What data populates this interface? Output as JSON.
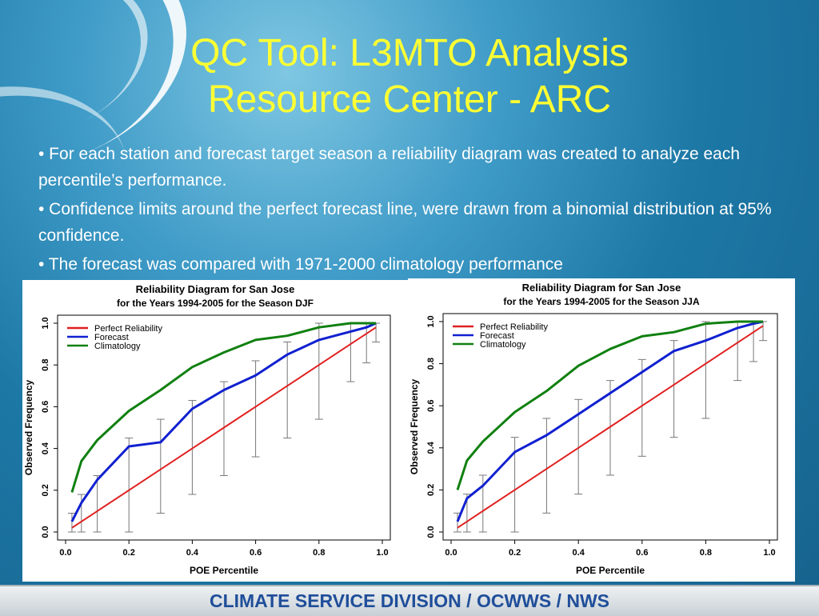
{
  "title_line1": "QC Tool: L3MTO Analysis",
  "title_line2": "Resource Center - ARC",
  "bullets": [
    "• For each station and forecast target season a reliability diagram was created to analyze each percentile’s performance.",
    "• Confidence limits around the perfect forecast line, were drawn from a binomial distribution at 95% confidence.",
    "• The forecast was compared with 1971-2000 climatology performance"
  ],
  "footer": "CLIMATE SERVICE DIVISION / OCWWS / NWS",
  "colors": {
    "perfect": "#e02020",
    "forecast": "#1020d0",
    "climatology": "#108010",
    "title": "#ffff33",
    "footer_text": "#1f4e9a"
  },
  "chart_data": [
    {
      "type": "line",
      "title": "Reliability Diagram for San Jose",
      "subtitle": "for the Years 1994-2005 for the Season  DJF",
      "xlabel": "POE Percentile",
      "ylabel": "Observed Frequency",
      "xlim": [
        0,
        1
      ],
      "ylim": [
        0,
        1
      ],
      "xticks": [
        "0.0",
        "0.2",
        "0.4",
        "0.6",
        "0.8",
        "1.0"
      ],
      "yticks": [
        "0.0",
        "0.2",
        "0.4",
        "0.6",
        "0.8",
        "1.0"
      ],
      "x": [
        0.02,
        0.05,
        0.1,
        0.2,
        0.3,
        0.4,
        0.5,
        0.6,
        0.7,
        0.8,
        0.9,
        0.95,
        0.98
      ],
      "series": [
        {
          "name": "Perfect Reliability",
          "color": "#e02020",
          "values": [
            0.02,
            0.05,
            0.1,
            0.2,
            0.3,
            0.4,
            0.5,
            0.6,
            0.7,
            0.8,
            0.9,
            0.95,
            0.98
          ]
        },
        {
          "name": "Forecast",
          "color": "#1020d0",
          "values": [
            0.05,
            0.14,
            0.25,
            0.41,
            0.43,
            0.59,
            0.68,
            0.75,
            0.85,
            0.92,
            0.96,
            0.98,
            1.0
          ]
        },
        {
          "name": "Climatology",
          "color": "#108010",
          "values": [
            0.19,
            0.34,
            0.44,
            0.58,
            0.68,
            0.79,
            0.86,
            0.92,
            0.94,
            0.98,
            1.0,
            1.0,
            1.0
          ]
        }
      ],
      "error_bars": {
        "x": [
          0.02,
          0.05,
          0.1,
          0.2,
          0.3,
          0.4,
          0.5,
          0.6,
          0.7,
          0.8,
          0.9,
          0.95,
          0.98
        ],
        "low": [
          0.0,
          0.0,
          0.0,
          0.0,
          0.09,
          0.18,
          0.27,
          0.36,
          0.45,
          0.54,
          0.72,
          0.81,
          0.91
        ],
        "high": [
          0.09,
          0.18,
          0.27,
          0.45,
          0.54,
          0.63,
          0.72,
          0.82,
          0.91,
          1.0,
          1.0,
          1.0,
          1.0
        ]
      },
      "legend_position": "top-left"
    },
    {
      "type": "line",
      "title": "Reliability Diagram for San Jose",
      "subtitle": "for the Years 1994-2005 for the Season  JJA",
      "xlabel": "POE Percentile",
      "ylabel": "Observed Frequency",
      "xlim": [
        0,
        1
      ],
      "ylim": [
        0,
        1
      ],
      "xticks": [
        "0.0",
        "0.2",
        "0.4",
        "0.6",
        "0.8",
        "1.0"
      ],
      "yticks": [
        "0.0",
        "0.2",
        "0.4",
        "0.6",
        "0.8",
        "1.0"
      ],
      "x": [
        0.02,
        0.05,
        0.1,
        0.2,
        0.3,
        0.4,
        0.5,
        0.6,
        0.7,
        0.8,
        0.9,
        0.95,
        0.98
      ],
      "series": [
        {
          "name": "Perfect Reliability",
          "color": "#e02020",
          "values": [
            0.02,
            0.05,
            0.1,
            0.2,
            0.3,
            0.4,
            0.5,
            0.6,
            0.7,
            0.8,
            0.9,
            0.95,
            0.98
          ]
        },
        {
          "name": "Forecast",
          "color": "#1020d0",
          "values": [
            0.05,
            0.16,
            0.22,
            0.38,
            0.46,
            0.56,
            0.66,
            0.76,
            0.86,
            0.91,
            0.97,
            0.99,
            1.0
          ]
        },
        {
          "name": "Climatology",
          "color": "#108010",
          "values": [
            0.2,
            0.34,
            0.43,
            0.57,
            0.67,
            0.79,
            0.87,
            0.93,
            0.95,
            0.99,
            1.0,
            1.0,
            1.0
          ]
        }
      ],
      "error_bars": {
        "x": [
          0.02,
          0.05,
          0.1,
          0.2,
          0.3,
          0.4,
          0.5,
          0.6,
          0.7,
          0.8,
          0.9,
          0.95,
          0.98
        ],
        "low": [
          0.0,
          0.0,
          0.0,
          0.0,
          0.09,
          0.18,
          0.27,
          0.36,
          0.45,
          0.54,
          0.72,
          0.81,
          0.91
        ],
        "high": [
          0.09,
          0.18,
          0.27,
          0.45,
          0.54,
          0.63,
          0.72,
          0.82,
          0.91,
          1.0,
          1.0,
          1.0,
          1.0
        ]
      },
      "legend_position": "top-left"
    }
  ]
}
